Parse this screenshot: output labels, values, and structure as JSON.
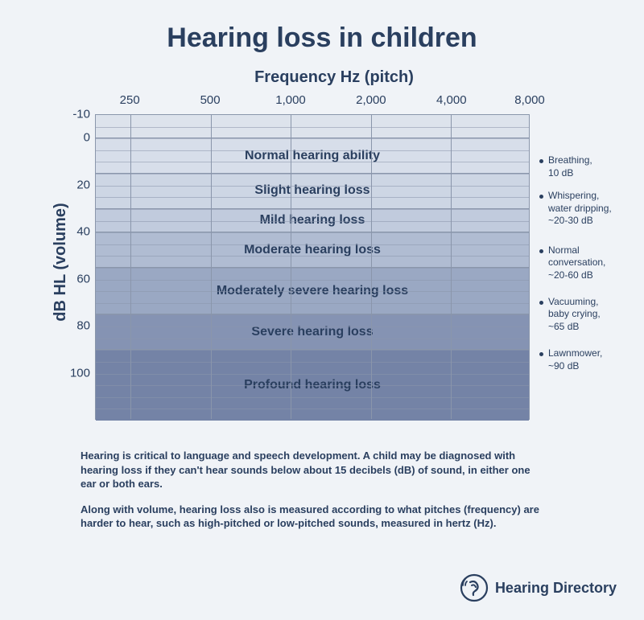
{
  "title": {
    "text": "Hearing loss in children",
    "fontsize": 34,
    "color": "#2a3f5f"
  },
  "subtitle": {
    "text": "Frequency Hz (pitch)",
    "fontsize": 20,
    "color": "#2a3f5f"
  },
  "ylabel": {
    "text": "dB HL  (volume)",
    "fontsize": 20,
    "color": "#2a3f5f"
  },
  "chart": {
    "type": "banded-heatmap",
    "background": "#f0f3f7",
    "grid_color": "#8a96ab",
    "text_color": "#2a3f5f",
    "x_ticks": [
      "250",
      "500",
      "1,000",
      "2,000",
      "4,000",
      "8,000"
    ],
    "x_positions_pct": [
      8,
      26.5,
      45,
      63.5,
      82,
      100
    ],
    "y_min": -10,
    "y_max": 120,
    "y_ticks": [
      -10,
      0,
      20,
      40,
      60,
      80,
      100
    ],
    "hline_db": [
      -5,
      0,
      5,
      10,
      15,
      20,
      25,
      30,
      35,
      40,
      45,
      50,
      55,
      60,
      65,
      70,
      75,
      80,
      85,
      90,
      95,
      100,
      105,
      110,
      115
    ],
    "bands": [
      {
        "label": "",
        "from": -10,
        "to": 0,
        "color": "#dde3ec"
      },
      {
        "label": "Normal hearing ability",
        "from": 0,
        "to": 15,
        "color": "#d7deea"
      },
      {
        "label": "Slight hearing loss",
        "from": 15,
        "to": 30,
        "color": "#cdd6e4"
      },
      {
        "label": "Mild hearing loss",
        "from": 30,
        "to": 40,
        "color": "#c1cbdd"
      },
      {
        "label": "Moderate hearing loss",
        "from": 40,
        "to": 55,
        "color": "#b0bcd2"
      },
      {
        "label": "Moderately severe hearing loss",
        "from": 55,
        "to": 75,
        "color": "#9aa8c3"
      },
      {
        "label": "Severe hearing loss",
        "from": 75,
        "to": 90,
        "color": "#8593b3"
      },
      {
        "label": "Profound hearing loss",
        "from": 90,
        "to": 120,
        "color": "#7483a6"
      }
    ],
    "band_label_fontsize": 16
  },
  "annotations": [
    {
      "text": "Breathing,\n10 dB",
      "db": 10
    },
    {
      "text": "Whispering,\nwater dripping,\n~20-30 dB",
      "db": 25
    },
    {
      "text": "Normal\nconversation,\n~20-60 dB",
      "db": 48
    },
    {
      "text": "Vacuuming,\nbaby crying,\n~65 dB",
      "db": 70
    },
    {
      "text": "Lawnmower,\n~90 dB",
      "db": 92
    }
  ],
  "footer": {
    "p1": "Hearing is critical to language and speech development. A child may be diagnosed with hearing loss if they can't hear sounds below about 15 decibels (dB) of sound, in either one ear or both ears.",
    "p2": "Along with volume, hearing loss also is measured according to what pitches (frequency)  are harder to hear, such as high-pitched or low-pitched sounds, measured in hertz (Hz)."
  },
  "logo": {
    "text": "Hearing Directory",
    "color": "#2a3f5f"
  }
}
